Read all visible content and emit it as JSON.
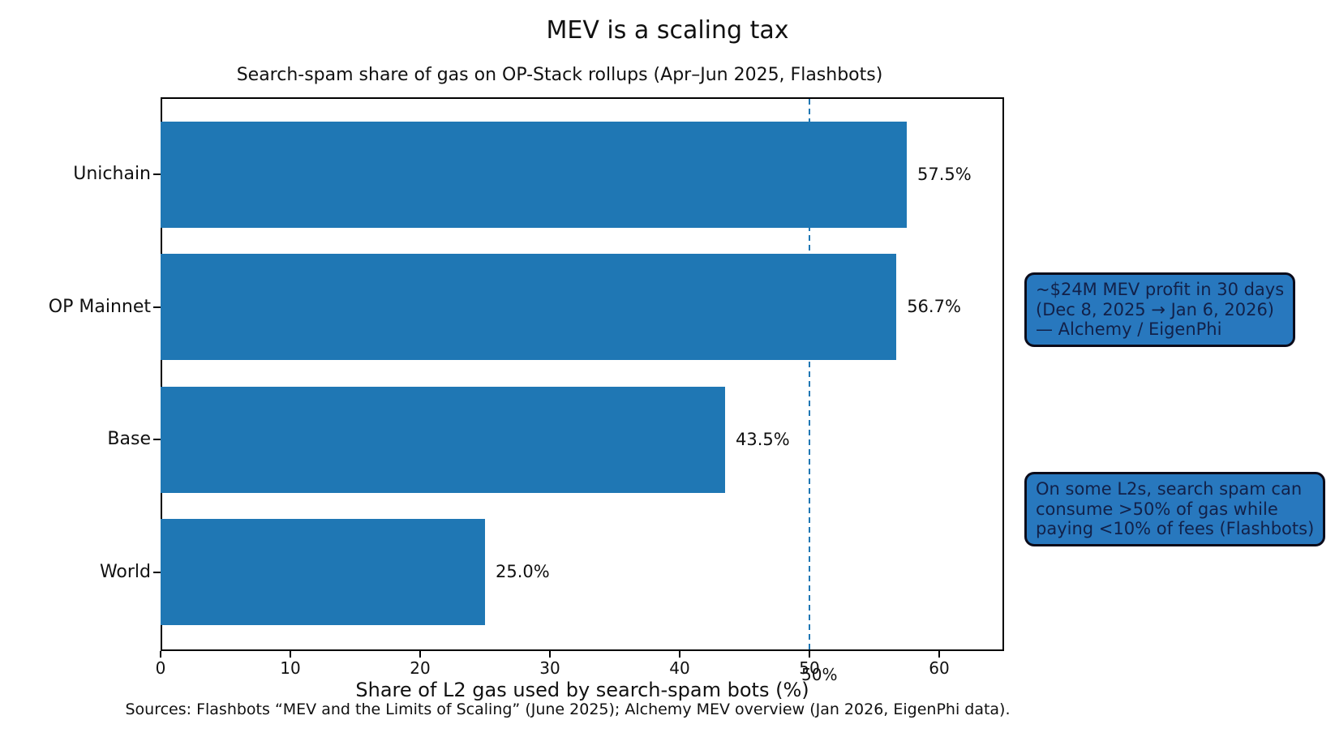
{
  "chart_data": {
    "type": "bar",
    "orientation": "horizontal",
    "title": "MEV is a scaling tax",
    "subtitle": "Search-spam share of gas on OP-Stack rollups (Apr–Jun 2025, Flashbots)",
    "xlabel": "Share of L2 gas used by search-spam bots (%)",
    "ylabel": "",
    "categories": [
      "Unichain",
      "OP Mainnet",
      "Base",
      "World"
    ],
    "values": [
      57.5,
      56.7,
      43.5,
      25.0
    ],
    "value_labels": [
      "57.5%",
      "56.7%",
      "43.5%",
      "25.0%"
    ],
    "xlim": [
      0,
      65
    ],
    "xticks": [
      0,
      10,
      20,
      30,
      40,
      50,
      60
    ],
    "grid": false,
    "legend": null,
    "bar_color": "#1f77b4",
    "frame_color": "#000000",
    "reference_line": {
      "x": 50,
      "label": "50%",
      "style": "dashed",
      "color": "#1f77b4"
    },
    "annotations": [
      {
        "text": "~$24M MEV profit in 30 days\n(Dec 8, 2025 → Jan 6, 2026)\n— Alchemy / EigenPhi",
        "box_color": "#2878be",
        "text_color": "#122149"
      },
      {
        "text": "On some L2s, search spam can\nconsume >50% of gas while\npaying <10% of fees (Flashbots)",
        "box_color": "#2878be",
        "text_color": "#122149"
      }
    ],
    "source_note": "Sources: Flashbots “MEV and the Limits of Scaling” (June 2025); Alchemy MEV overview (Jan 2026, EigenPhi data)."
  }
}
